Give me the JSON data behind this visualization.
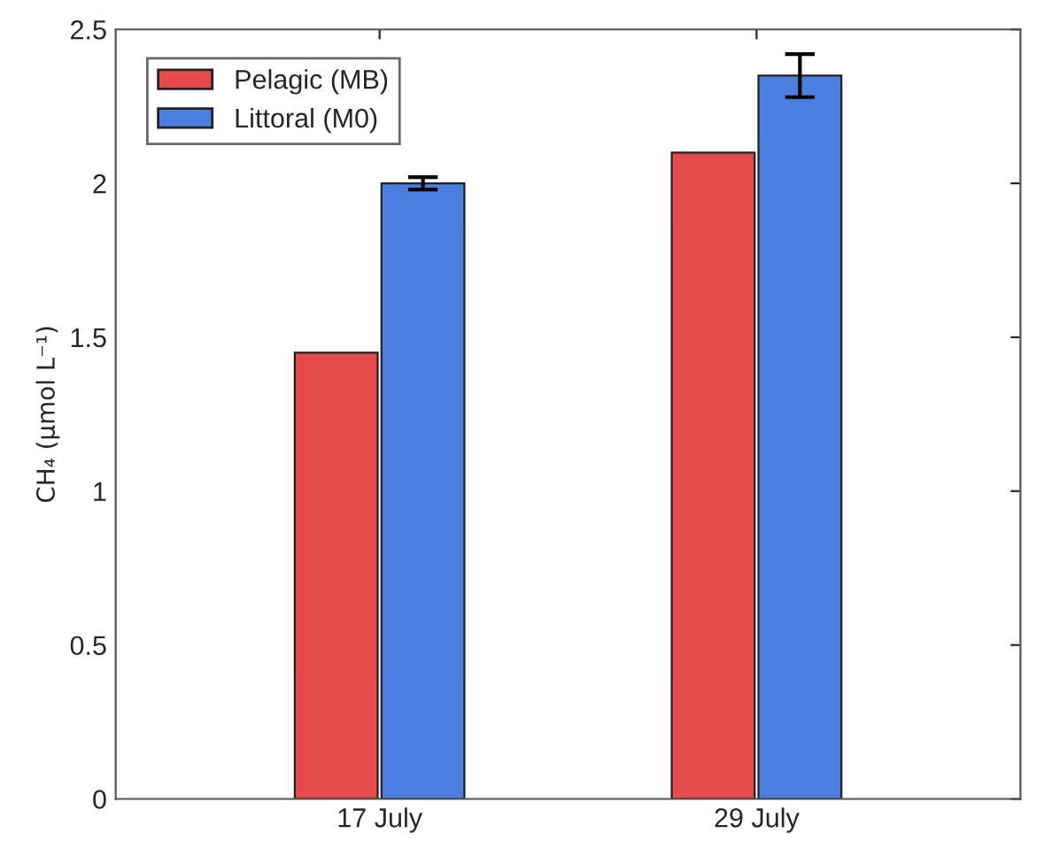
{
  "chart_data": {
    "type": "bar",
    "ylabel": "CH₄ (µmol L⁻¹)",
    "categories": [
      "17 July",
      "29 July"
    ],
    "series": [
      {
        "name": "Pelagic (MB)",
        "color": "#e54b4b",
        "values": [
          1.45,
          2.1
        ]
      },
      {
        "name": "Littoral (M0)",
        "color": "#4a7fe0",
        "values": [
          2.0,
          2.35
        ],
        "errors": [
          0.02,
          0.07
        ]
      }
    ],
    "ylim": [
      0,
      2.5
    ],
    "yticks": [
      0,
      0.5,
      1,
      1.5,
      2,
      2.5
    ],
    "grid": false,
    "legend": "top left"
  }
}
